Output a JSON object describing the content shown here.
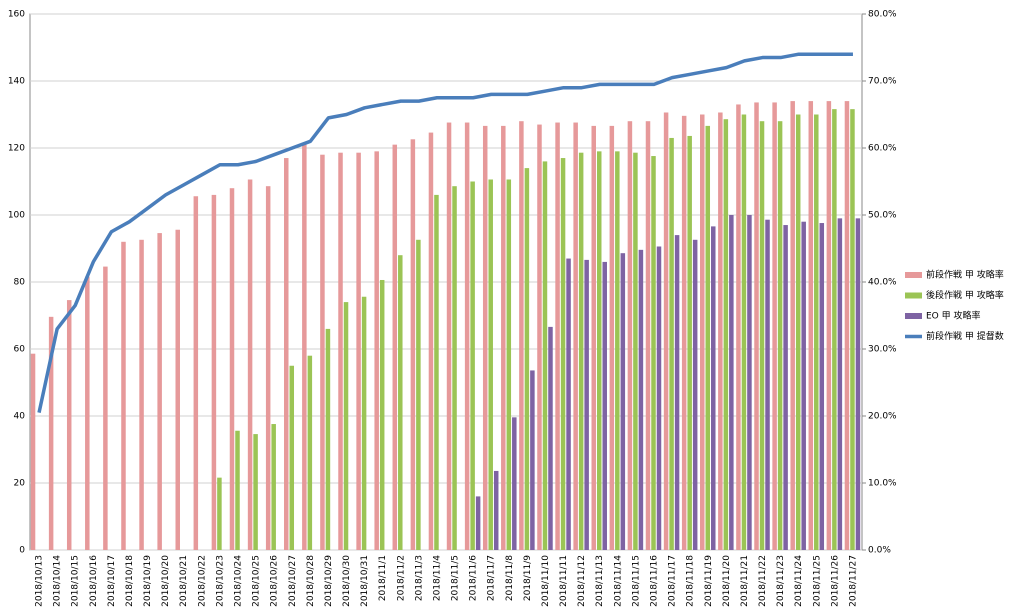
{
  "chart_data": {
    "type": "bar",
    "categories": [
      "2018/10/13",
      "2018/10/14",
      "2018/10/15",
      "2018/10/16",
      "2018/10/17",
      "2018/10/18",
      "2018/10/19",
      "2018/10/20",
      "2018/10/21",
      "2018/10/22",
      "2018/10/23",
      "2018/10/24",
      "2018/10/25",
      "2018/10/26",
      "2018/10/27",
      "2018/10/28",
      "2018/10/29",
      "2018/10/30",
      "2018/10/31",
      "2018/11/1",
      "2018/11/2",
      "2018/11/3",
      "2018/11/4",
      "2018/11/5",
      "2018/11/6",
      "2018/11/7",
      "2018/11/8",
      "2018/11/9",
      "2018/11/10",
      "2018/11/11",
      "2018/11/12",
      "2018/11/13",
      "2018/11/14",
      "2018/11/15",
      "2018/11/16",
      "2018/11/17",
      "2018/11/18",
      "2018/11/19",
      "2018/11/20",
      "2018/11/21",
      "2018/11/22",
      "2018/11/23",
      "2018/11/24",
      "2018/11/25",
      "2018/11/26",
      "2018/11/27"
    ],
    "series": [
      {
        "name": "前段作戦 甲 攻略率",
        "type": "bar",
        "axis": "y2",
        "color": "#e6999a",
        "values": [
          29.3,
          34.8,
          37.3,
          40.8,
          42.3,
          46,
          46.3,
          47.3,
          47.8,
          52.8,
          53,
          54,
          55.3,
          54.3,
          58.5,
          60.5,
          59,
          59.3,
          59.3,
          59.5,
          60.5,
          61.3,
          62.3,
          63.8,
          63.8,
          63.3,
          63.3,
          64,
          63.5,
          63.8,
          63.8,
          63.3,
          63.3,
          64,
          64,
          65.3,
          64.8,
          65,
          65.3,
          66.5,
          66.8,
          66.8,
          67,
          67,
          67,
          67
        ]
      },
      {
        "name": "後段作戦 甲 攻略率",
        "type": "bar",
        "axis": "y2",
        "color": "#9bc455",
        "values": [
          null,
          null,
          null,
          null,
          null,
          null,
          null,
          null,
          null,
          null,
          10.8,
          17.8,
          17.3,
          18.8,
          27.5,
          29,
          33,
          37,
          37.8,
          40.3,
          44,
          46.3,
          53,
          54.3,
          55,
          55.3,
          55.3,
          57,
          58,
          58.5,
          59.3,
          59.5,
          59.5,
          59.3,
          58.8,
          61.5,
          61.8,
          63.3,
          64.3,
          65,
          64,
          64,
          65,
          65,
          65.8,
          65.8
        ]
      },
      {
        "name": "EO 甲 攻略率",
        "type": "bar",
        "axis": "y2",
        "color": "#7e63a3",
        "values": [
          null,
          null,
          null,
          null,
          null,
          null,
          null,
          null,
          null,
          null,
          null,
          null,
          null,
          null,
          null,
          null,
          null,
          null,
          null,
          null,
          null,
          null,
          null,
          null,
          8,
          11.8,
          19.8,
          26.8,
          33.3,
          43.5,
          43.3,
          43,
          44.3,
          44.8,
          45.3,
          47,
          46.3,
          48.3,
          50,
          50,
          49.3,
          48.5,
          49,
          48.8,
          49.5,
          49.5
        ]
      },
      {
        "name": "前段作戦 甲 提督数",
        "type": "line",
        "color": "#4a7ebb",
        "values": [
          41,
          66,
          73,
          86,
          95,
          98,
          102,
          106,
          109,
          112,
          115,
          115,
          116,
          118,
          120,
          122,
          129,
          130,
          132,
          133,
          134,
          134,
          135,
          135,
          135,
          136,
          136,
          136,
          137,
          138,
          138,
          139,
          139,
          139,
          139,
          141,
          142,
          143,
          144,
          146,
          147,
          147,
          148,
          148,
          148,
          148
        ]
      }
    ],
    "ylim": [
      0,
      160
    ],
    "yticks": [
      0,
      20,
      40,
      60,
      80,
      100,
      120,
      140,
      160
    ],
    "y2lim": [
      0,
      80
    ],
    "y2ticks": [
      {
        "value": 0,
        "label": "0.0%"
      },
      {
        "value": 10,
        "label": "10.0%"
      },
      {
        "value": 20,
        "label": "20.0%"
      },
      {
        "value": 30,
        "label": "30.0%"
      },
      {
        "value": 40,
        "label": "40.0%"
      },
      {
        "value": 50,
        "label": "50.0%"
      },
      {
        "value": 60,
        "label": "60.0%"
      },
      {
        "value": 70,
        "label": "70.0%"
      },
      {
        "value": 80,
        "label": "80.0%"
      }
    ],
    "grid": true,
    "legend": "right"
  }
}
